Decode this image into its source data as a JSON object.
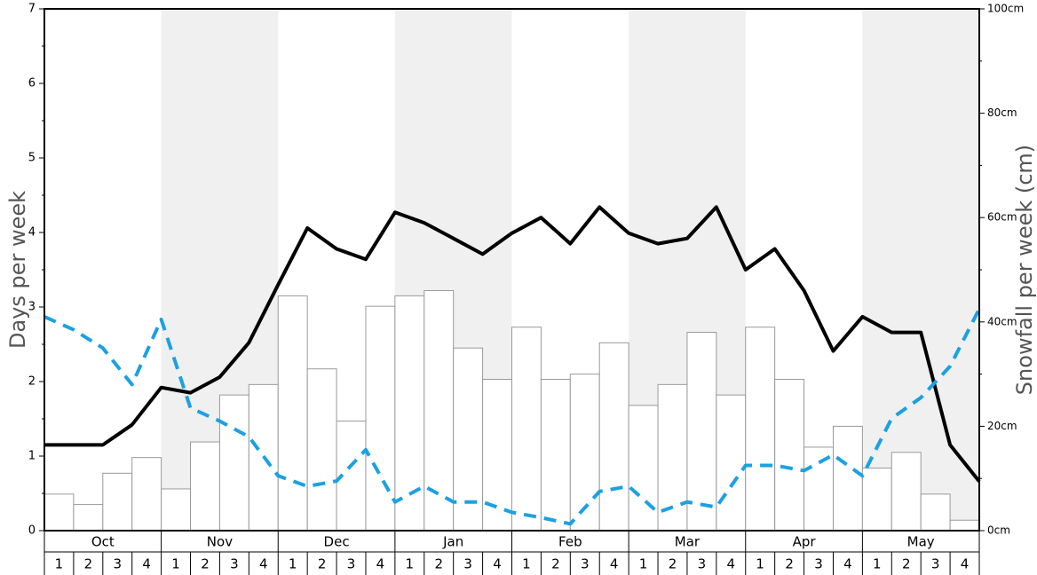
{
  "chart_data": {
    "type": "bar",
    "ylabel_left": "Days per week",
    "ylabel_right": "Snowfall per week (cm)",
    "ylim_left": [
      0,
      7
    ],
    "ylim_right": [
      0,
      100
    ],
    "left_ticks": [
      "0",
      "1",
      "2",
      "3",
      "4",
      "5",
      "6",
      "7"
    ],
    "right_ticks": [
      "0cm",
      "20cm",
      "40cm",
      "60cm",
      "80cm",
      "100cm"
    ],
    "months": [
      "Oct",
      "Nov",
      "Dec",
      "Jan",
      "Feb",
      "Mar",
      "Apr",
      "May"
    ],
    "weeks": [
      "1",
      "2",
      "3",
      "4"
    ],
    "shaded_months": [
      "Nov",
      "Jan",
      "Mar",
      "May"
    ],
    "series": [
      {
        "kind": "bar",
        "axis": "right",
        "unit": "cm",
        "values": [
          7,
          5,
          11,
          14,
          8,
          17,
          26,
          28,
          45,
          31,
          21,
          43,
          45,
          46,
          35,
          29,
          39,
          29,
          30,
          36,
          24,
          28,
          38,
          26,
          39,
          29,
          16,
          20,
          12,
          15,
          7,
          2
        ]
      },
      {
        "kind": "line",
        "axis": "left",
        "style": "solid",
        "color": "#000000",
        "values": [
          1.15,
          1.15,
          1.15,
          1.42,
          1.92,
          1.85,
          2.06,
          2.52,
          3.3,
          4.06,
          3.78,
          3.64,
          4.27,
          4.13,
          3.92,
          3.71,
          3.99,
          4.2,
          3.85,
          4.34,
          3.99,
          3.85,
          3.92,
          4.34,
          3.5,
          3.78,
          3.22,
          2.41,
          2.87,
          2.66,
          2.66,
          1.15,
          0.66
        ]
      },
      {
        "kind": "line",
        "axis": "right",
        "style": "dashed",
        "color": "#1ba1e2",
        "values": [
          41,
          38.5,
          35,
          28,
          40.5,
          23.5,
          21,
          18,
          10.5,
          8.5,
          9.5,
          15.5,
          5.5,
          8.5,
          5.5,
          5.5,
          3.5,
          2.5,
          1.3,
          7.5,
          8.5,
          3.5,
          5.5,
          4.5,
          12.5,
          12.5,
          11.5,
          14.5,
          10.5,
          21.5,
          25.5,
          31.5,
          42.5
        ]
      }
    ]
  }
}
